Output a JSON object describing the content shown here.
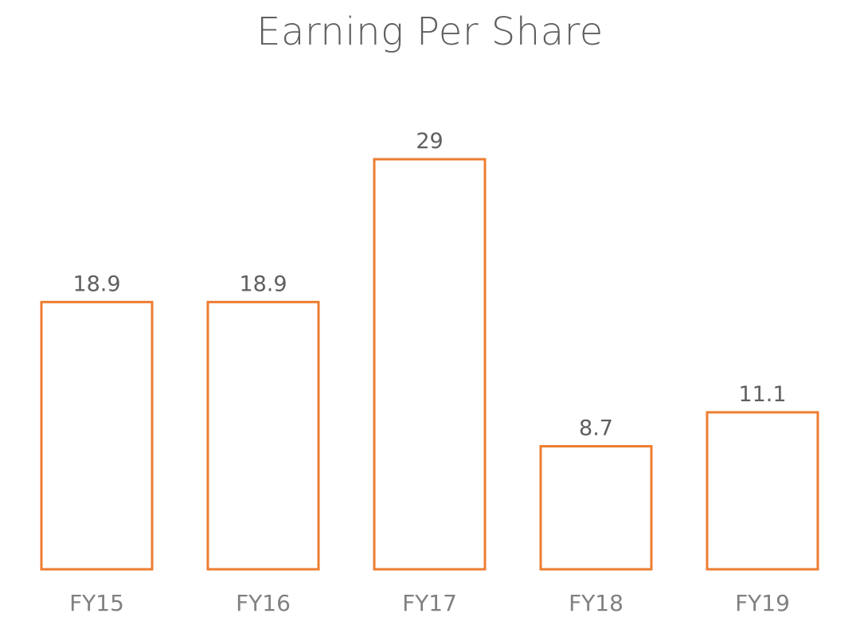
{
  "colors": {
    "bar_stroke": "#ED7D31",
    "title": "#5f5f5f",
    "data_label": "#5f5f5f",
    "tick_label": "#808080"
  },
  "chart_data": {
    "type": "bar",
    "title": "Earning Per Share",
    "xlabel": "",
    "ylabel": "",
    "categories": [
      "FY15",
      "FY16",
      "FY17",
      "FY18",
      "FY19"
    ],
    "values": [
      18.9,
      18.9,
      29,
      8.7,
      11.1
    ],
    "data_labels": [
      "18.9",
      "18.9",
      "29",
      "8.7",
      "11.1"
    ],
    "ylim": [
      0,
      29
    ],
    "grid": false,
    "legend": "none",
    "bar_style": "outline"
  }
}
